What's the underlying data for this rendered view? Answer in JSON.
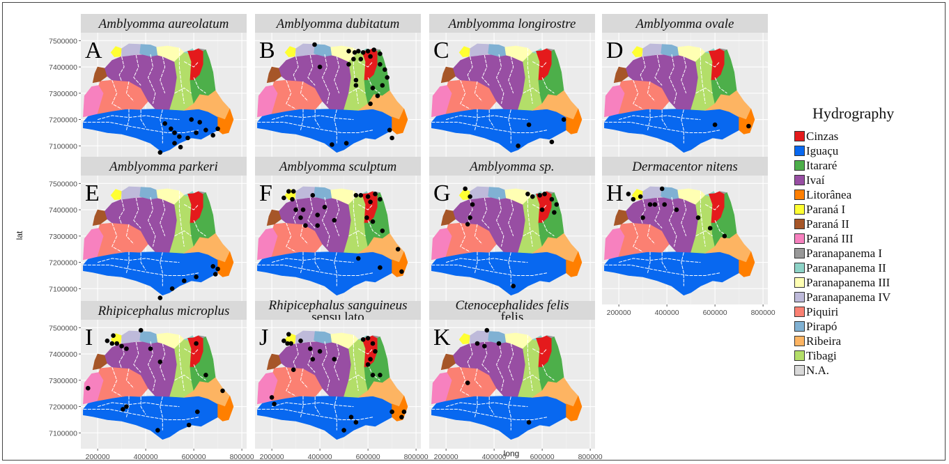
{
  "chart_data": {
    "type": "map",
    "xlabel": "long",
    "ylabel": "lat",
    "x_ticks": [
      "200000",
      "400000",
      "600000",
      "800000"
    ],
    "y_ticks": [
      "7500000",
      "7400000",
      "7300000",
      "7200000",
      "7100000"
    ],
    "xlim": [
      130000,
      820000
    ],
    "ylim": [
      7040000,
      7530000
    ],
    "legend": {
      "title": "Hydrography",
      "position": "right",
      "items": [
        {
          "label": "Cinzas",
          "color": "#E41A1C"
        },
        {
          "label": "Iguaçu",
          "color": "#0868F0"
        },
        {
          "label": "Itararé",
          "color": "#4DAF4A"
        },
        {
          "label": "Ivaí",
          "color": "#984EA3"
        },
        {
          "label": "Litorânea",
          "color": "#FF7F00"
        },
        {
          "label": "Paraná I",
          "color": "#FFFF33"
        },
        {
          "label": "Paraná II",
          "color": "#A65628"
        },
        {
          "label": "Paraná III",
          "color": "#F781BF"
        },
        {
          "label": "Paranapanema I",
          "color": "#999999"
        },
        {
          "label": "Paranapanema II",
          "color": "#8DD3C7"
        },
        {
          "label": "Paranapanema III",
          "color": "#FFFFB3"
        },
        {
          "label": "Paranapanema IV",
          "color": "#BEBADA"
        },
        {
          "label": "Piquiri",
          "color": "#FB8072"
        },
        {
          "label": "Pirapó",
          "color": "#80B1D3"
        },
        {
          "label": "Ribeira",
          "color": "#FDB462"
        },
        {
          "label": "Tibagi",
          "color": "#B3DE69"
        },
        {
          "label": "N.A.",
          "color": "#D9D9D9"
        }
      ]
    },
    "panels": [
      {
        "letter": "A",
        "species": "Amblyomma aureolatum",
        "points": [
          [
            480000,
            7185000
          ],
          [
            505000,
            7165000
          ],
          [
            520000,
            7150000
          ],
          [
            540000,
            7135000
          ],
          [
            575000,
            7130000
          ],
          [
            610000,
            7150000
          ],
          [
            625000,
            7190000
          ],
          [
            650000,
            7160000
          ],
          [
            680000,
            7140000
          ],
          [
            700000,
            7165000
          ],
          [
            520000,
            7110000
          ],
          [
            545000,
            7095000
          ],
          [
            460000,
            7075000
          ],
          [
            590000,
            7200000
          ]
        ]
      },
      {
        "letter": "B",
        "species": "Amblyomma dubitatum",
        "points": [
          [
            378000,
            7485000
          ],
          [
            520000,
            7460000
          ],
          [
            545000,
            7455000
          ],
          [
            560000,
            7460000
          ],
          [
            580000,
            7455000
          ],
          [
            600000,
            7460000
          ],
          [
            625000,
            7465000
          ],
          [
            650000,
            7450000
          ],
          [
            610000,
            7440000
          ],
          [
            570000,
            7430000
          ],
          [
            540000,
            7430000
          ],
          [
            520000,
            7410000
          ],
          [
            650000,
            7410000
          ],
          [
            670000,
            7390000
          ],
          [
            680000,
            7360000
          ],
          [
            660000,
            7330000
          ],
          [
            620000,
            7320000
          ],
          [
            640000,
            7290000
          ],
          [
            610000,
            7260000
          ],
          [
            550000,
            7350000
          ],
          [
            550000,
            7330000
          ],
          [
            400000,
            7400000
          ],
          [
            690000,
            7160000
          ],
          [
            700000,
            7130000
          ],
          [
            510000,
            7110000
          ],
          [
            450000,
            7105000
          ]
        ]
      },
      {
        "letter": "C",
        "species": "Amblyomma longirostre",
        "points": [
          [
            690000,
            7200000
          ],
          [
            545000,
            7180000
          ],
          [
            640000,
            7115000
          ],
          [
            500000,
            7100000
          ]
        ]
      },
      {
        "letter": "D",
        "species": "Amblyomma ovale",
        "points": [
          [
            600000,
            7180000
          ],
          [
            740000,
            7175000
          ]
        ]
      },
      {
        "letter": "E",
        "species": "Amblyomma parkeri",
        "points": [
          [
            680000,
            7185000
          ],
          [
            700000,
            7175000
          ],
          [
            690000,
            7155000
          ],
          [
            610000,
            7145000
          ],
          [
            560000,
            7130000
          ],
          [
            510000,
            7100000
          ],
          [
            460000,
            7065000
          ]
        ]
      },
      {
        "letter": "F",
        "species": "Amblyomma sculptum",
        "points": [
          [
            250000,
            7445000
          ],
          [
            270000,
            7470000
          ],
          [
            290000,
            7470000
          ],
          [
            285000,
            7440000
          ],
          [
            370000,
            7455000
          ],
          [
            300000,
            7400000
          ],
          [
            330000,
            7400000
          ],
          [
            320000,
            7370000
          ],
          [
            340000,
            7340000
          ],
          [
            390000,
            7380000
          ],
          [
            390000,
            7340000
          ],
          [
            420000,
            7410000
          ],
          [
            460000,
            7360000
          ],
          [
            550000,
            7455000
          ],
          [
            570000,
            7455000
          ],
          [
            600000,
            7450000
          ],
          [
            630000,
            7460000
          ],
          [
            650000,
            7440000
          ],
          [
            610000,
            7430000
          ],
          [
            595000,
            7370000
          ],
          [
            620000,
            7355000
          ],
          [
            660000,
            7320000
          ],
          [
            560000,
            7215000
          ],
          [
            725000,
            7250000
          ],
          [
            740000,
            7165000
          ],
          [
            650000,
            7180000
          ]
        ]
      },
      {
        "letter": "G",
        "species": "Amblyomma sp.",
        "points": [
          [
            280000,
            7480000
          ],
          [
            300000,
            7450000
          ],
          [
            310000,
            7420000
          ],
          [
            300000,
            7370000
          ],
          [
            290000,
            7345000
          ],
          [
            540000,
            7460000
          ],
          [
            560000,
            7450000
          ],
          [
            590000,
            7455000
          ],
          [
            610000,
            7460000
          ],
          [
            640000,
            7440000
          ],
          [
            660000,
            7420000
          ],
          [
            600000,
            7400000
          ],
          [
            650000,
            7390000
          ],
          [
            480000,
            7110000
          ]
        ]
      },
      {
        "letter": "H",
        "species": "Dermacentor nitens",
        "points": [
          [
            240000,
            7460000
          ],
          [
            260000,
            7440000
          ],
          [
            290000,
            7450000
          ],
          [
            380000,
            7480000
          ],
          [
            330000,
            7420000
          ],
          [
            350000,
            7420000
          ],
          [
            390000,
            7420000
          ],
          [
            440000,
            7400000
          ],
          [
            530000,
            7370000
          ],
          [
            580000,
            7330000
          ],
          [
            640000,
            7300000
          ],
          [
            300000,
            7370000
          ]
        ]
      },
      {
        "letter": "I",
        "species": "Rhipicephalus microplus",
        "points": [
          [
            265000,
            7470000
          ],
          [
            380000,
            7490000
          ],
          [
            240000,
            7450000
          ],
          [
            260000,
            7440000
          ],
          [
            280000,
            7440000
          ],
          [
            300000,
            7430000
          ],
          [
            320000,
            7420000
          ],
          [
            420000,
            7420000
          ],
          [
            460000,
            7370000
          ],
          [
            610000,
            7440000
          ],
          [
            650000,
            7320000
          ],
          [
            720000,
            7260000
          ],
          [
            615000,
            7180000
          ],
          [
            580000,
            7130000
          ],
          [
            450000,
            7110000
          ],
          [
            320000,
            7200000
          ],
          [
            305000,
            7190000
          ],
          [
            160000,
            7270000
          ]
        ]
      },
      {
        "letter": "J",
        "species": "Rhipicephalus sanguineus sensu lato",
        "points": [
          [
            270000,
            7475000
          ],
          [
            250000,
            7450000
          ],
          [
            265000,
            7440000
          ],
          [
            280000,
            7440000
          ],
          [
            320000,
            7450000
          ],
          [
            360000,
            7420000
          ],
          [
            400000,
            7410000
          ],
          [
            370000,
            7380000
          ],
          [
            460000,
            7380000
          ],
          [
            290000,
            7340000
          ],
          [
            580000,
            7455000
          ],
          [
            600000,
            7460000
          ],
          [
            620000,
            7440000
          ],
          [
            630000,
            7410000
          ],
          [
            610000,
            7380000
          ],
          [
            600000,
            7360000
          ],
          [
            620000,
            7320000
          ],
          [
            650000,
            7320000
          ],
          [
            200000,
            7235000
          ],
          [
            210000,
            7210000
          ],
          [
            530000,
            7160000
          ],
          [
            550000,
            7140000
          ],
          [
            500000,
            7110000
          ],
          [
            700000,
            7180000
          ],
          [
            750000,
            7180000
          ],
          [
            740000,
            7160000
          ]
        ]
      },
      {
        "letter": "K",
        "species": "Ctenocephalides felis felis",
        "points": [
          [
            370000,
            7490000
          ],
          [
            330000,
            7440000
          ],
          [
            360000,
            7430000
          ],
          [
            420000,
            7440000
          ],
          [
            290000,
            7290000
          ],
          [
            545000,
            7140000
          ]
        ]
      }
    ]
  }
}
